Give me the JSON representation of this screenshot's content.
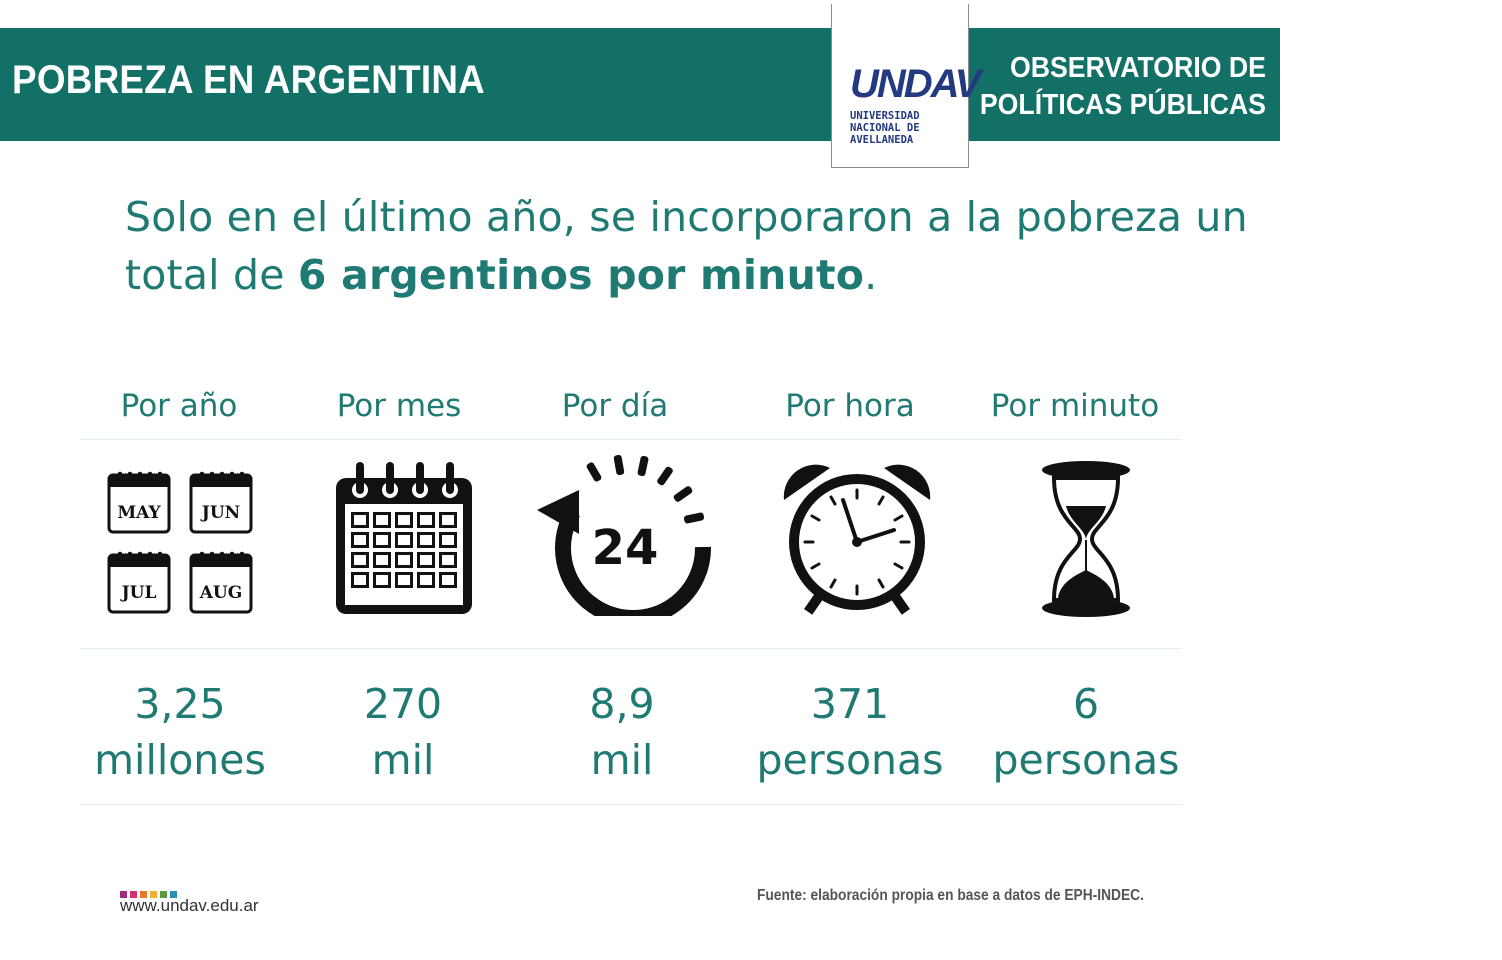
{
  "header": {
    "title": "POBREZA EN ARGENTINA",
    "observatory_line1": "OBSERVATORIO DE",
    "observatory_line2": "POLÍTICAS PÚBLICAS",
    "logo_mark": "UNDAV",
    "logo_line1": "UNIVERSIDAD",
    "logo_line2": "NACIONAL DE",
    "logo_line3": "AVELLANEDA"
  },
  "headline": {
    "part1": "Solo en el último año, se incorporaron a la pobreza un total de ",
    "bold": "6 argentinos por minuto",
    "part2": "."
  },
  "columns": [
    {
      "label": "Por año",
      "value": "3,25",
      "unit": "millones",
      "icon": "monthly-calendars-icon"
    },
    {
      "label": "Por mes",
      "value": "270",
      "unit": "mil",
      "icon": "calendar-icon"
    },
    {
      "label": "Por día",
      "value": "8,9",
      "unit": "mil",
      "icon": "24-hours-icon"
    },
    {
      "label": "Por hora",
      "value": "371",
      "unit": "personas",
      "icon": "alarm-clock-icon"
    },
    {
      "label": "Por minuto",
      "value": "6",
      "unit": "personas",
      "icon": "hourglass-icon"
    }
  ],
  "calendar_months": [
    "MAY",
    "JUN",
    "JUL",
    "AUG"
  ],
  "clock_label": "24",
  "footer": {
    "site": "www.undav.edu.ar",
    "source": "Fuente: elaboración propia en base a datos de EPH-INDEC.",
    "dot_colors": [
      "#9b2d7f",
      "#d6336c",
      "#e8762c",
      "#f2b134",
      "#5b9b3f",
      "#2a8fb0"
    ]
  },
  "colors": {
    "teal": "#127066",
    "text_teal": "#1f7a73",
    "logo_blue": "#233a80"
  }
}
